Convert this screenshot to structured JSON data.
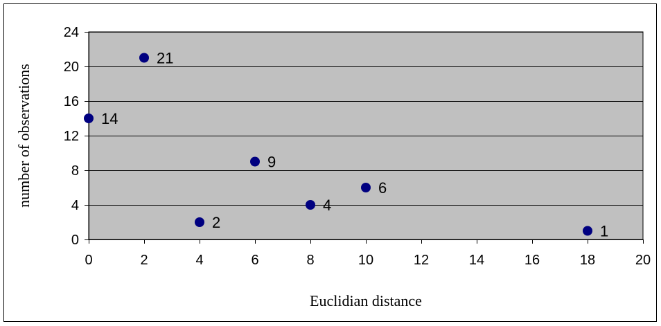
{
  "chart_data": {
    "type": "scatter",
    "xlabel": "Euclidian distance",
    "ylabel": "number of observations",
    "xlim": [
      0,
      20
    ],
    "ylim": [
      0,
      24
    ],
    "x_ticks": [
      0,
      2,
      4,
      6,
      8,
      10,
      12,
      14,
      16,
      18,
      20
    ],
    "y_ticks": [
      0,
      4,
      8,
      12,
      16,
      20,
      24
    ],
    "grid": "horizontal",
    "legend": "none",
    "colors": {
      "plot_background": "#c0c0c0",
      "marker": "#000080",
      "gridline": "#000000"
    },
    "points": [
      {
        "x": 0,
        "y": 14,
        "label": "14"
      },
      {
        "x": 2,
        "y": 21,
        "label": "21"
      },
      {
        "x": 4,
        "y": 2,
        "label": "2"
      },
      {
        "x": 6,
        "y": 9,
        "label": "9"
      },
      {
        "x": 8,
        "y": 4,
        "label": "4"
      },
      {
        "x": 10,
        "y": 6,
        "label": "6"
      },
      {
        "x": 18,
        "y": 1,
        "label": "1"
      }
    ]
  }
}
